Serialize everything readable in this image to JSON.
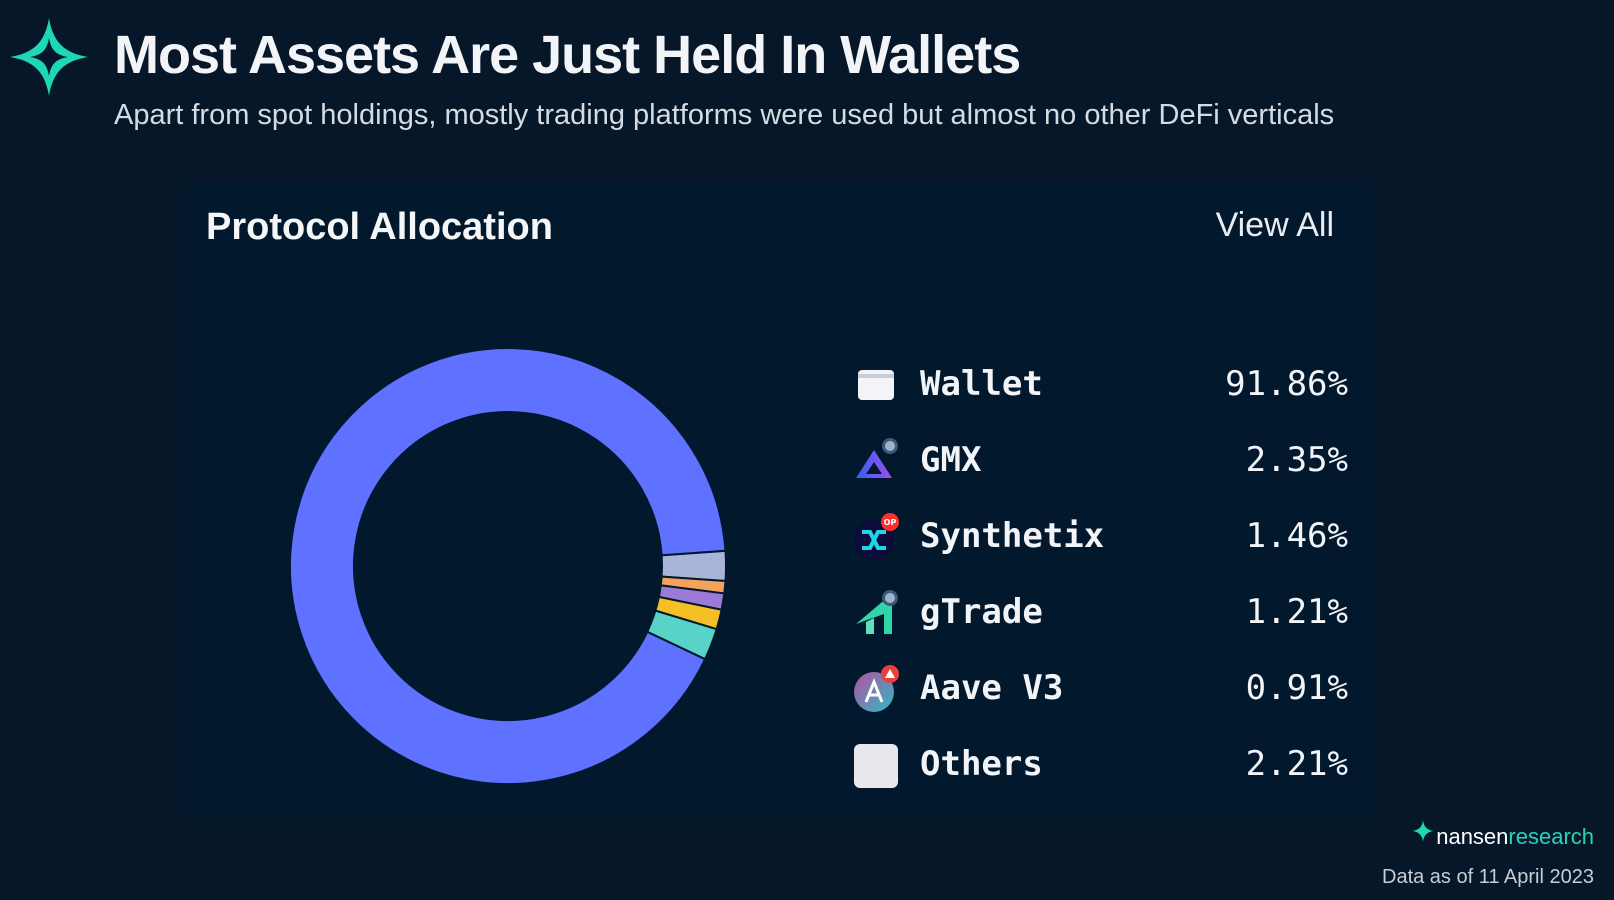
{
  "header": {
    "title": "Most Assets Are Just Held In Wallets",
    "subtitle": "Apart from spot holdings, mostly trading platforms were used but almost no other DeFi verticals"
  },
  "card": {
    "title": "Protocol Allocation",
    "view_all": "View All"
  },
  "chart_data": {
    "type": "pie",
    "variant": "donut",
    "title": "Protocol Allocation",
    "categories": [
      "Wallet",
      "GMX",
      "Synthetix",
      "gTrade",
      "Aave V3",
      "Others"
    ],
    "values": [
      91.86,
      2.35,
      1.46,
      1.21,
      0.91,
      2.21
    ],
    "labels": [
      "91.86%",
      "2.35%",
      "1.46%",
      "1.21%",
      "0.91%",
      "2.21%"
    ],
    "colors": [
      "#5f72ff",
      "#57d4c7",
      "#f6bf26",
      "#9b7ad8",
      "#f5a25a",
      "#a7b6d8"
    ],
    "legend": "right"
  },
  "legend_icons": [
    "wallet-icon",
    "gmx-icon",
    "synthetix-icon",
    "gtrade-icon",
    "aave-icon",
    "others-icon"
  ],
  "footer": {
    "brand_first": "nansen",
    "brand_second": "research",
    "date": "Data as of 11 April 2023"
  }
}
